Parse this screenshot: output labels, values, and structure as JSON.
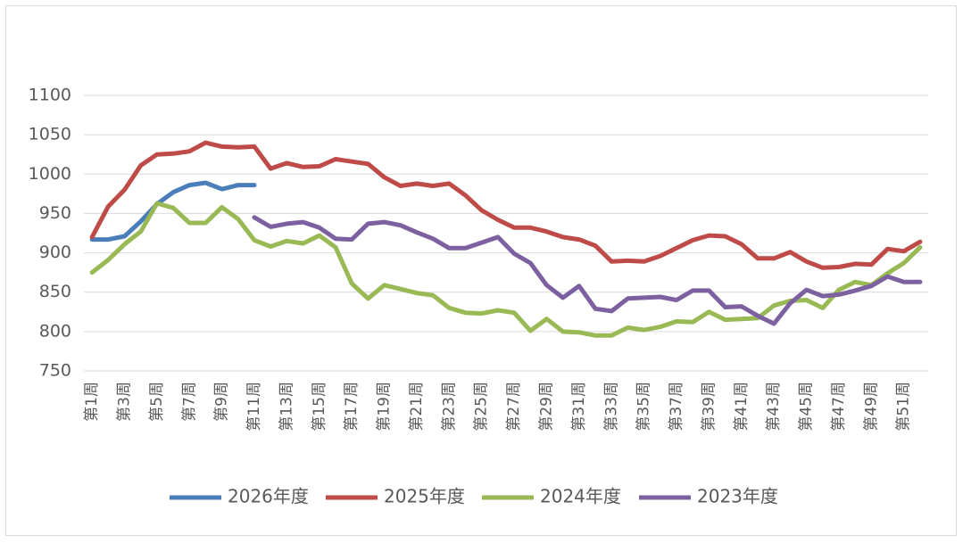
{
  "chart_data": {
    "type": "line",
    "categories": [
      "第1周",
      null,
      "第3周",
      null,
      "第5周",
      null,
      "第7周",
      null,
      "第9周",
      null,
      "第11周",
      null,
      "第13周",
      null,
      "第15周",
      null,
      "第17周",
      null,
      "第19周",
      null,
      "第21周",
      null,
      "第23周",
      null,
      "第25周",
      null,
      "第27周",
      null,
      "第29周",
      null,
      "第31周",
      null,
      "第33周",
      null,
      "第35周",
      null,
      "第37周",
      null,
      "第39周",
      null,
      "第41周",
      null,
      "第43周",
      null,
      "第45周",
      null,
      "第47周",
      null,
      "第49周",
      null,
      "第51周",
      null
    ],
    "series": [
      {
        "name": "2026年度",
        "color": "#4a7ebb",
        "values": [
          917,
          917,
          921,
          940,
          962,
          977,
          986,
          989,
          981,
          986,
          986,
          null,
          null,
          null,
          null,
          null,
          null,
          null,
          null,
          null,
          null,
          null,
          null,
          null,
          null,
          null,
          null,
          null,
          null,
          null,
          null,
          null,
          null,
          null,
          null,
          null,
          null,
          null,
          null,
          null,
          null,
          null,
          null,
          null,
          null,
          null,
          null,
          null,
          null,
          null,
          null,
          null
        ]
      },
      {
        "name": "2025年度",
        "color": "#be4b48",
        "values": [
          920,
          959,
          980,
          1011,
          1025,
          1026,
          1029,
          1040,
          1035,
          1034,
          1035,
          1007,
          1014,
          1009,
          1010,
          1019,
          1016,
          1013,
          996,
          985,
          988,
          985,
          988,
          973,
          954,
          942,
          932,
          932,
          927,
          920,
          917,
          909,
          889,
          890,
          889,
          896,
          906,
          916,
          922,
          921,
          911,
          893,
          893,
          901,
          889,
          881,
          882,
          886,
          885,
          905,
          902,
          914
        ]
      },
      {
        "name": "2024年度",
        "color": "#98b954",
        "values": [
          875,
          891,
          911,
          927,
          963,
          957,
          938,
          938,
          958,
          943,
          916,
          908,
          915,
          912,
          922,
          907,
          861,
          842,
          859,
          854,
          849,
          846,
          830,
          824,
          823,
          827,
          824,
          801,
          816,
          800,
          799,
          795,
          795,
          805,
          802,
          806,
          813,
          812,
          825,
          815,
          816,
          817,
          833,
          839,
          840,
          830,
          853,
          863,
          859,
          874,
          887,
          907
        ]
      },
      {
        "name": "2023年度",
        "color": "#7d60a0",
        "values": [
          null,
          null,
          null,
          null,
          null,
          null,
          null,
          null,
          null,
          null,
          945,
          933,
          937,
          939,
          932,
          918,
          917,
          937,
          939,
          935,
          926,
          918,
          906,
          906,
          913,
          920,
          899,
          887,
          859,
          843,
          858,
          829,
          826,
          842,
          843,
          844,
          840,
          852,
          852,
          831,
          832,
          820,
          810,
          836,
          853,
          845,
          847,
          852,
          858,
          870,
          863,
          863
        ]
      }
    ],
    "ylim": [
      750,
      1100
    ],
    "yticks": [
      750,
      800,
      850,
      900,
      950,
      1000,
      1050,
      1100
    ],
    "grid": true,
    "legend": "bottom"
  }
}
